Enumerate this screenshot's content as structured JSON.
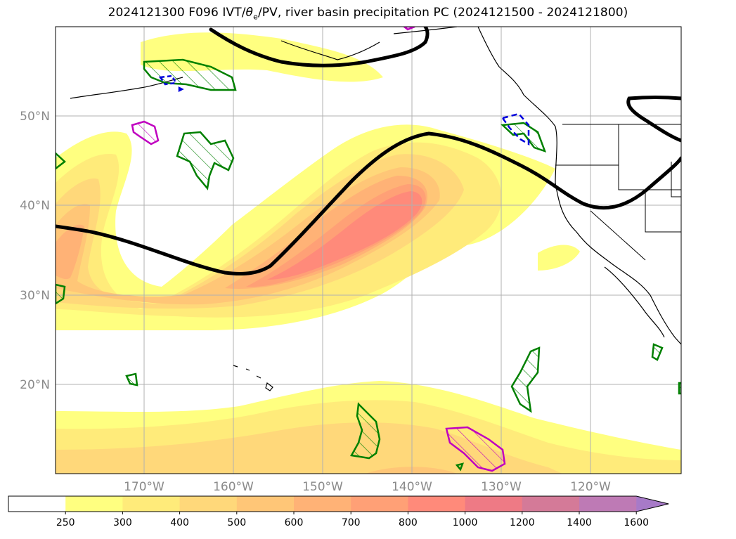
{
  "title_prefix": "2024121300 F096 IVT/",
  "title_theta": "θ",
  "title_theta_sub": "e",
  "title_suffix": "/PV, river basin precipitation PC (2024121500 - 2024121800)",
  "lat_labels": [
    "50°N",
    "40°N",
    "30°N",
    "20°N"
  ],
  "lon_labels": [
    "170°W",
    "160°W",
    "150°W",
    "140°W",
    "130°W",
    "120°W"
  ],
  "colorbar": {
    "ticks": [
      "250",
      "300",
      "400",
      "500",
      "600",
      "700",
      "800",
      "1000",
      "1200",
      "1400",
      "1600"
    ],
    "colors": [
      "#ffffff",
      "#ffff80",
      "#ffeb7a",
      "#ffd87a",
      "#ffc677",
      "#ffb276",
      "#ffa076",
      "#ff8a7a",
      "#ee7a85",
      "#d47a98",
      "#be7ab5",
      "#a77ac8"
    ],
    "extend": "max"
  },
  "legend_colors": {
    "pv_contour": "#000000",
    "green_hatch": "#008000",
    "magenta_hatch": "#c000c0",
    "blue_dashed": "#0000dd"
  }
}
